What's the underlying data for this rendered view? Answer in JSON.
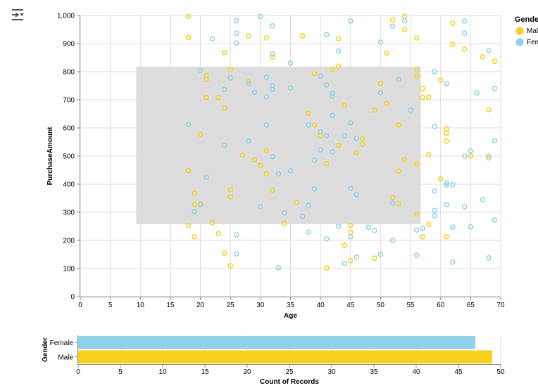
{
  "toolbar": {
    "icon": "filter-menu-icon"
  },
  "colors": {
    "Male": "#f7d11b",
    "Female": "#8fd0ea",
    "grid": "#dddddd",
    "selection": "#dddddd"
  },
  "legend": {
    "title": "Gender",
    "items": [
      "Male",
      "Female"
    ]
  },
  "chart_data": [
    {
      "type": "scatter",
      "title": "",
      "xlabel": "Age",
      "ylabel": "PurchaseAmount",
      "xlim": [
        0,
        70
      ],
      "ylim": [
        0,
        1000
      ],
      "x_ticks": [
        0,
        5,
        10,
        15,
        20,
        25,
        30,
        35,
        40,
        45,
        50,
        55,
        60,
        65,
        70
      ],
      "y_ticks": [
        0,
        100,
        200,
        300,
        400,
        500,
        600,
        700,
        800,
        900,
        1000
      ],
      "y_tick_labels": [
        "0",
        "100",
        "200",
        "300",
        "400",
        "500",
        "600",
        "700",
        "800",
        "900",
        "1,000"
      ],
      "grid": true,
      "legend_position": "top-right",
      "brush": {
        "age": [
          9.3,
          56.7
        ],
        "purchase": [
          258,
          818
        ]
      },
      "series": [
        {
          "name": "Male",
          "points": [
            [
              18,
              997
            ],
            [
              18,
              922
            ],
            [
              18,
              448
            ],
            [
              18,
              253
            ],
            [
              19,
              368
            ],
            [
              19,
              327
            ],
            [
              19,
              303
            ],
            [
              19,
              213
            ],
            [
              20,
              577
            ],
            [
              20,
              330
            ],
            [
              21,
              787
            ],
            [
              21,
              772
            ],
            [
              21,
              708
            ],
            [
              22,
              263
            ],
            [
              23,
              708
            ],
            [
              23,
              224
            ],
            [
              24,
              868
            ],
            [
              24,
              672
            ],
            [
              24,
              155
            ],
            [
              25,
              808
            ],
            [
              25,
              777
            ],
            [
              25,
              380
            ],
            [
              25,
              355
            ],
            [
              25,
              110
            ],
            [
              27,
              503
            ],
            [
              28,
              927
            ],
            [
              28,
              765
            ],
            [
              29,
              487
            ],
            [
              30,
              467
            ],
            [
              31,
              920
            ],
            [
              31,
              518
            ],
            [
              31,
              437
            ],
            [
              32,
              852
            ],
            [
              32,
              378
            ],
            [
              34,
              260
            ],
            [
              36,
              335
            ],
            [
              37,
              928
            ],
            [
              38,
              652
            ],
            [
              39,
              610
            ],
            [
              39,
              793
            ],
            [
              40,
              572
            ],
            [
              41,
              473
            ],
            [
              41,
              102
            ],
            [
              42,
              808
            ],
            [
              43,
              917
            ],
            [
              43,
              820
            ],
            [
              43,
              538
            ],
            [
              44,
              680
            ],
            [
              44,
              182
            ],
            [
              45,
              253
            ],
            [
              45,
              228
            ],
            [
              45,
              128
            ],
            [
              46,
              513
            ],
            [
              47,
              562
            ],
            [
              47,
              542
            ],
            [
              49,
              137
            ],
            [
              49,
              663
            ],
            [
              50,
              758
            ],
            [
              51,
              687
            ],
            [
              51,
              867
            ],
            [
              52,
              985
            ],
            [
              52,
              353
            ],
            [
              53,
              447
            ],
            [
              53,
              610
            ],
            [
              53,
              330
            ],
            [
              54,
              997
            ],
            [
              54,
              950
            ],
            [
              54,
              487
            ],
            [
              56,
              920
            ],
            [
              56,
              808
            ],
            [
              56,
              783
            ],
            [
              56,
              473
            ],
            [
              56,
              293
            ],
            [
              57,
              740
            ],
            [
              57,
              708
            ],
            [
              57,
              213
            ],
            [
              58,
              710
            ],
            [
              58,
              505
            ],
            [
              58,
              257
            ],
            [
              60,
              770
            ],
            [
              60,
              418
            ],
            [
              61,
              597
            ],
            [
              61,
              582
            ],
            [
              61,
              553
            ],
            [
              61,
              213
            ],
            [
              62,
              972
            ],
            [
              62,
              897
            ],
            [
              64,
              880
            ],
            [
              65,
              500
            ],
            [
              67,
              853
            ],
            [
              68,
              665
            ],
            [
              68,
              500
            ],
            [
              69,
              837
            ]
          ]
        },
        {
          "name": "Female",
          "points": [
            [
              18,
              612
            ],
            [
              19,
              302
            ],
            [
              20,
              805
            ],
            [
              20,
              327
            ],
            [
              21,
              425
            ],
            [
              22,
              917
            ],
            [
              24,
              737
            ],
            [
              24,
              538
            ],
            [
              25,
              778
            ],
            [
              26,
              982
            ],
            [
              26,
              937
            ],
            [
              26,
              902
            ],
            [
              26,
              220
            ],
            [
              26,
              152
            ],
            [
              28,
              758
            ],
            [
              28,
              553
            ],
            [
              29,
              727
            ],
            [
              30,
              997
            ],
            [
              30,
              320
            ],
            [
              31,
              780
            ],
            [
              31,
              710
            ],
            [
              31,
              610
            ],
            [
              32,
              963
            ],
            [
              32,
              863
            ],
            [
              32,
              750
            ],
            [
              32,
              738
            ],
            [
              32,
              498
            ],
            [
              33,
              437
            ],
            [
              33,
              103
            ],
            [
              34,
              298
            ],
            [
              35,
              830
            ],
            [
              35,
              742
            ],
            [
              35,
              448
            ],
            [
              37,
              285
            ],
            [
              38,
              325
            ],
            [
              38,
              230
            ],
            [
              38,
              610
            ],
            [
              39,
              485
            ],
            [
              39,
              383
            ],
            [
              40,
              785
            ],
            [
              40,
              587
            ],
            [
              40,
              522
            ],
            [
              41,
              932
            ],
            [
              41,
              753
            ],
            [
              41,
              573
            ],
            [
              41,
              205
            ],
            [
              42,
              723
            ],
            [
              42,
              713
            ],
            [
              42,
              645
            ],
            [
              42,
              515
            ],
            [
              43,
              873
            ],
            [
              43,
              250
            ],
            [
              44,
              572
            ],
            [
              44,
              118
            ],
            [
              45,
              980
            ],
            [
              45,
              618
            ],
            [
              45,
              385
            ],
            [
              45,
              213
            ],
            [
              46,
              563
            ],
            [
              46,
              363
            ],
            [
              46,
              140
            ],
            [
              48,
              247
            ],
            [
              49,
              235
            ],
            [
              50,
              905
            ],
            [
              50,
              725
            ],
            [
              50,
              150
            ],
            [
              52,
              962
            ],
            [
              52,
              333
            ],
            [
              52,
              200
            ],
            [
              53,
              773
            ],
            [
              54,
              982
            ],
            [
              55,
              663
            ],
            [
              56,
              237
            ],
            [
              56,
              147
            ],
            [
              57,
              243
            ],
            [
              59,
              800
            ],
            [
              59,
              605
            ],
            [
              59,
              375
            ],
            [
              59,
              307
            ],
            [
              59,
              288
            ],
            [
              61,
              758
            ],
            [
              61,
              405
            ],
            [
              61,
              397
            ],
            [
              61,
              327
            ],
            [
              62,
              398
            ],
            [
              62,
              247
            ],
            [
              62,
              123
            ],
            [
              64,
              980
            ],
            [
              64,
              937
            ],
            [
              64,
              500
            ],
            [
              64,
              320
            ],
            [
              65,
              518
            ],
            [
              65,
              248
            ],
            [
              66,
              725
            ],
            [
              67,
              345
            ],
            [
              68,
              875
            ],
            [
              68,
              493
            ],
            [
              68,
              138
            ],
            [
              69,
              740
            ],
            [
              69,
              555
            ],
            [
              69,
              273
            ]
          ]
        }
      ]
    },
    {
      "type": "bar",
      "orientation": "horizontal",
      "title": "",
      "xlabel": "Count of Records",
      "ylabel": "Gender",
      "categories": [
        "Female",
        "Male"
      ],
      "values": [
        47,
        49
      ],
      "xlim": [
        0,
        50
      ],
      "x_ticks": [
        0,
        5,
        10,
        15,
        20,
        25,
        30,
        35,
        40,
        45,
        50
      ],
      "grid": true
    }
  ]
}
